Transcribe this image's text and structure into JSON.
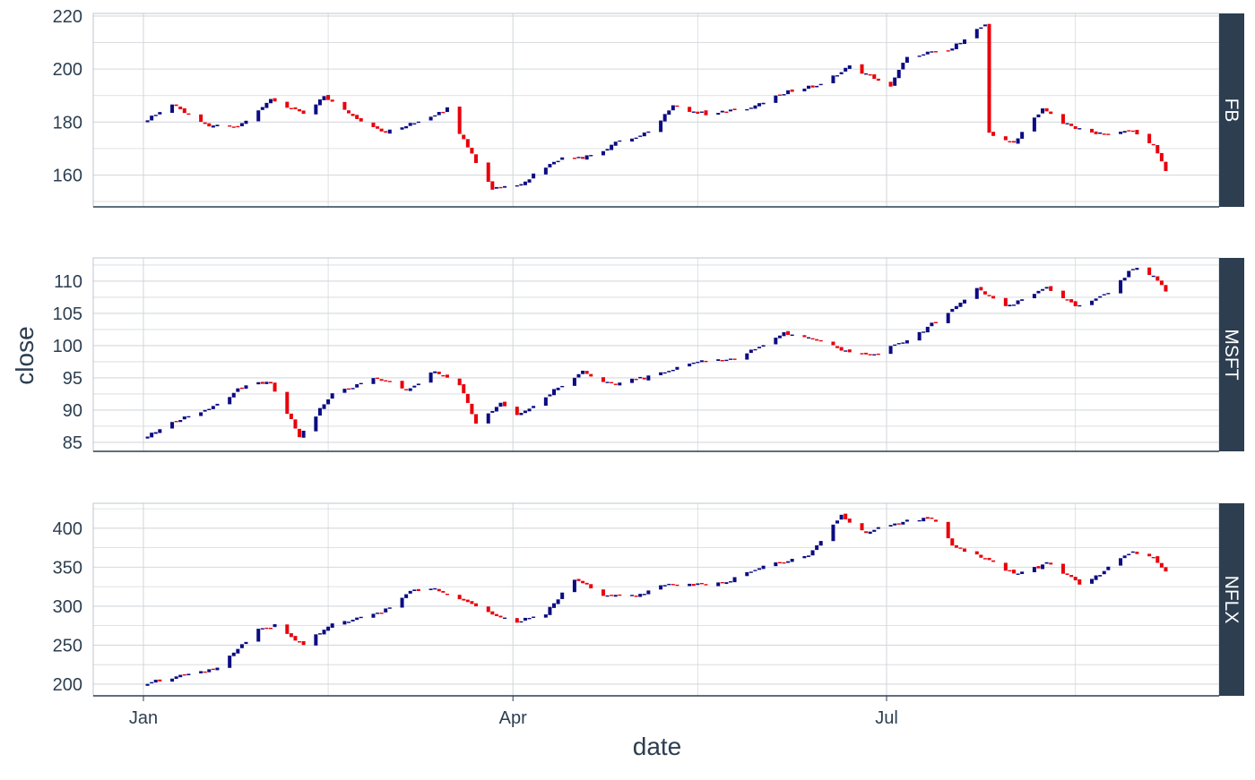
{
  "chart_data": {
    "type": "candlestick",
    "xlabel": "date",
    "ylabel": "close",
    "x_ticks": [
      "Jan",
      "Apr",
      "Jul"
    ],
    "x_range": [
      "2018-01-01",
      "2018-08-31"
    ],
    "grid": true,
    "colors": {
      "up": "#0b0b82",
      "down": "#e8000b",
      "strip": "#2c3e50",
      "strip_text": "#ffffff",
      "grid": "#d4d8dc",
      "text": "#2c3e50"
    },
    "panels": [
      {
        "name": "FB",
        "ylim": [
          148,
          221
        ],
        "yticks": [
          160,
          180,
          200,
          220
        ],
        "keypoints": [
          [
            "2018-01-02",
            181
          ],
          [
            "2018-01-08",
            187
          ],
          [
            "2018-01-16",
            179
          ],
          [
            "2018-01-24",
            178
          ],
          [
            "2018-02-01",
            189
          ],
          [
            "2018-02-09",
            183
          ],
          [
            "2018-02-14",
            190
          ],
          [
            "2018-02-22",
            181
          ],
          [
            "2018-02-28",
            176
          ],
          [
            "2018-03-08",
            180
          ],
          [
            "2018-03-16",
            185
          ],
          [
            "2018-03-21",
            170
          ],
          [
            "2018-03-27",
            155
          ],
          [
            "2018-04-02",
            156
          ],
          [
            "2018-04-12",
            166
          ],
          [
            "2018-04-20",
            167
          ],
          [
            "2018-04-27",
            173
          ],
          [
            "2018-05-04",
            176
          ],
          [
            "2018-05-10",
            186
          ],
          [
            "2018-05-18",
            183
          ],
          [
            "2018-05-29",
            185
          ],
          [
            "2018-06-06",
            191
          ],
          [
            "2018-06-14",
            194
          ],
          [
            "2018-06-19",
            198
          ],
          [
            "2018-06-22",
            201
          ],
          [
            "2018-07-02",
            194
          ],
          [
            "2018-07-06",
            205
          ],
          [
            "2018-07-16",
            207
          ],
          [
            "2018-07-25",
            217
          ],
          [
            "2018-07-26",
            176
          ],
          [
            "2018-08-01",
            172
          ],
          [
            "2018-08-08",
            185
          ],
          [
            "2018-08-15",
            178
          ],
          [
            "2018-08-24",
            175
          ],
          [
            "2018-08-29",
            177
          ],
          [
            "2018-09-04",
            171
          ],
          [
            "2018-09-07",
            162
          ]
        ]
      },
      {
        "name": "MSFT",
        "ylim": [
          83.6,
          113.6
        ],
        "yticks": [
          85,
          90,
          95,
          100,
          105,
          110
        ],
        "keypoints": [
          [
            "2018-01-02",
            86
          ],
          [
            "2018-01-08",
            88.3
          ],
          [
            "2018-01-17",
            90
          ],
          [
            "2018-01-26",
            94
          ],
          [
            "2018-02-01",
            94.3
          ],
          [
            "2018-02-08",
            86
          ],
          [
            "2018-02-16",
            92.5
          ],
          [
            "2018-02-27",
            95
          ],
          [
            "2018-03-06",
            93
          ],
          [
            "2018-03-13",
            96
          ],
          [
            "2018-03-19",
            94
          ],
          [
            "2018-03-23",
            88
          ],
          [
            "2018-03-29",
            91
          ],
          [
            "2018-04-02",
            89
          ],
          [
            "2018-04-11",
            93
          ],
          [
            "2018-04-18",
            96
          ],
          [
            "2018-04-25",
            94
          ],
          [
            "2018-05-03",
            95
          ],
          [
            "2018-05-15",
            97.5
          ],
          [
            "2018-05-25",
            98
          ],
          [
            "2018-06-06",
            102
          ],
          [
            "2018-06-13",
            101
          ],
          [
            "2018-06-22",
            99
          ],
          [
            "2018-06-28",
            98.5
          ],
          [
            "2018-07-09",
            102
          ],
          [
            "2018-07-16",
            105
          ],
          [
            "2018-07-23",
            109
          ],
          [
            "2018-07-30",
            106
          ],
          [
            "2018-08-09",
            109
          ],
          [
            "2018-08-17",
            106
          ],
          [
            "2018-08-24",
            108
          ],
          [
            "2018-08-30",
            112
          ],
          [
            "2018-09-04",
            111
          ],
          [
            "2018-09-07",
            108.3
          ]
        ]
      },
      {
        "name": "NFLX",
        "ylim": [
          185,
          432
        ],
        "yticks": [
          200,
          250,
          300,
          350,
          400
        ],
        "keypoints": [
          [
            "2018-01-02",
            201
          ],
          [
            "2018-01-12",
            213
          ],
          [
            "2018-01-19",
            221
          ],
          [
            "2018-01-29",
            271
          ],
          [
            "2018-02-02",
            275
          ],
          [
            "2018-02-09",
            251
          ],
          [
            "2018-02-16",
            276
          ],
          [
            "2018-02-28",
            291
          ],
          [
            "2018-03-07",
            321
          ],
          [
            "2018-03-14",
            321
          ],
          [
            "2018-03-21",
            305
          ],
          [
            "2018-03-27",
            290
          ],
          [
            "2018-04-02",
            280
          ],
          [
            "2018-04-09",
            291
          ],
          [
            "2018-04-16",
            336
          ],
          [
            "2018-04-23",
            315
          ],
          [
            "2018-05-01",
            313
          ],
          [
            "2018-05-08",
            327
          ],
          [
            "2018-05-22",
            329
          ],
          [
            "2018-06-01",
            352
          ],
          [
            "2018-06-12",
            364
          ],
          [
            "2018-06-20",
            416
          ],
          [
            "2018-06-26",
            395
          ],
          [
            "2018-07-05",
            408
          ],
          [
            "2018-07-12",
            414
          ],
          [
            "2018-07-17",
            379
          ],
          [
            "2018-07-24",
            362
          ],
          [
            "2018-08-02",
            340
          ],
          [
            "2018-08-09",
            355
          ],
          [
            "2018-08-17",
            329
          ],
          [
            "2018-08-22",
            342
          ],
          [
            "2018-08-30",
            370
          ],
          [
            "2018-09-04",
            362
          ],
          [
            "2018-09-07",
            346
          ]
        ]
      }
    ]
  }
}
